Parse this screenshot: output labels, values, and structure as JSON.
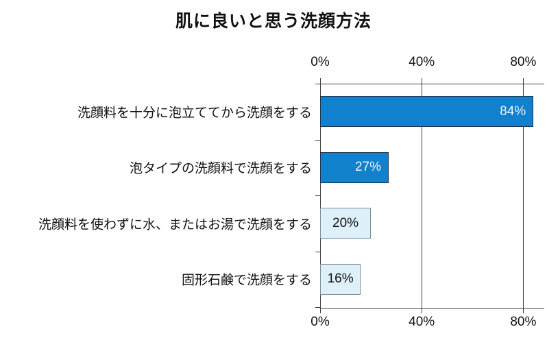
{
  "title": "肌に良いと思う洗顔方法",
  "chart_data": {
    "type": "bar",
    "orientation": "horizontal",
    "title": "肌に良いと思う洗顔方法",
    "categories": [
      "洗顔料を十分に泡立ててから洗顔をする",
      "泡タイプの洗顔料で洗顔をする",
      "洗顔料を使わずに水、またはお湯で洗顔をする",
      "固形石鹸で洗顔をする"
    ],
    "values": [
      84,
      27,
      20,
      16
    ],
    "value_labels": [
      "84%",
      "27%",
      "20%",
      "16%"
    ],
    "x_ticks": [
      {
        "value": 0,
        "label": "0%"
      },
      {
        "value": 40,
        "label": "40%"
      },
      {
        "value": 80,
        "label": "80%"
      }
    ],
    "xlim": [
      0,
      88
    ],
    "grid": true,
    "legend": false,
    "axis_color": "#3f3f3f",
    "background": "#ffffff",
    "series_styles": [
      {
        "fill": "#1180cd",
        "border": "#17354f",
        "label_color": "#edf7fd",
        "label_align": "right"
      },
      {
        "fill": "#1180cd",
        "border": "#17354f",
        "label_color": "#edf7fd",
        "label_align": "right"
      },
      {
        "fill": "#def0f9",
        "border": "#7e8c96",
        "label_color": "#111111",
        "label_align": "center"
      },
      {
        "fill": "#def0f9",
        "border": "#7e8c96",
        "label_color": "#111111",
        "label_align": "center"
      }
    ]
  }
}
